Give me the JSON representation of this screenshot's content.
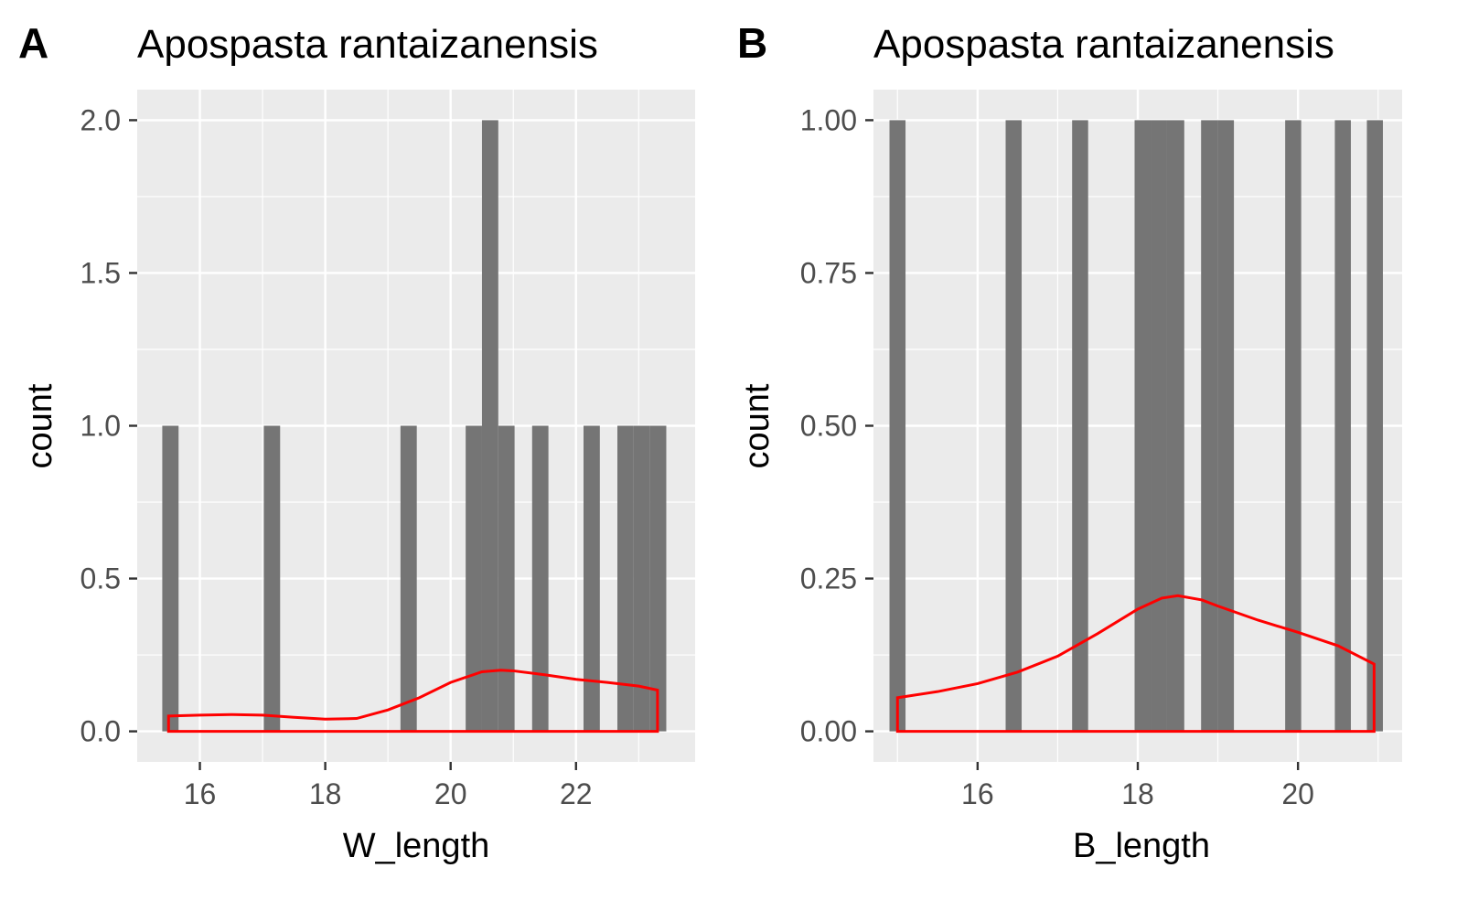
{
  "chart_data": [
    {
      "tag": "A",
      "type": "bar",
      "title": "Apospasta rantaizanensis",
      "xlabel": "W_length",
      "ylabel": "count",
      "xlim": [
        15.0,
        23.9
      ],
      "ylim": [
        -0.1,
        2.1
      ],
      "xticks": [
        16,
        18,
        20,
        22
      ],
      "xtick_labels": [
        "16",
        "18",
        "20",
        "22"
      ],
      "yticks": [
        0,
        0.5,
        1,
        1.5,
        2
      ],
      "ytick_labels": [
        "0.0",
        "0.5",
        "1.0",
        "1.5",
        "2.0"
      ],
      "bar_color": "#757575",
      "density_color": "#ff0000",
      "grid": true,
      "bars": [
        {
          "x0": 15.4,
          "x1": 15.66,
          "count": 1
        },
        {
          "x0": 17.02,
          "x1": 17.28,
          "count": 1
        },
        {
          "x0": 19.2,
          "x1": 19.46,
          "count": 1
        },
        {
          "x0": 20.24,
          "x1": 20.5,
          "count": 1
        },
        {
          "x0": 20.5,
          "x1": 20.76,
          "count": 2
        },
        {
          "x0": 20.76,
          "x1": 21.02,
          "count": 1
        },
        {
          "x0": 21.3,
          "x1": 21.56,
          "count": 1
        },
        {
          "x0": 22.12,
          "x1": 22.38,
          "count": 1
        },
        {
          "x0": 22.66,
          "x1": 22.92,
          "count": 1
        },
        {
          "x0": 22.92,
          "x1": 23.18,
          "count": 1
        },
        {
          "x0": 23.18,
          "x1": 23.44,
          "count": 1
        }
      ],
      "density": {
        "x": [
          15.5,
          16.0,
          16.5,
          17.0,
          17.5,
          18.0,
          18.5,
          19.0,
          19.5,
          20.0,
          20.5,
          20.8,
          21.0,
          21.5,
          22.0,
          22.5,
          23.0,
          23.3
        ],
        "y": [
          0.05,
          0.053,
          0.055,
          0.053,
          0.046,
          0.04,
          0.042,
          0.07,
          0.11,
          0.16,
          0.195,
          0.2,
          0.198,
          0.185,
          0.17,
          0.16,
          0.148,
          0.135
        ]
      }
    },
    {
      "tag": "B",
      "type": "bar",
      "title": "Apospasta rantaizanensis",
      "xlabel": "B_length",
      "ylabel": "count",
      "xlim": [
        14.7,
        21.3
      ],
      "ylim": [
        -0.05,
        1.05
      ],
      "xticks": [
        16,
        18,
        20
      ],
      "xtick_labels": [
        "16",
        "18",
        "20"
      ],
      "yticks": [
        0,
        0.25,
        0.5,
        0.75,
        1
      ],
      "ytick_labels": [
        "0.00",
        "0.25",
        "0.50",
        "0.75",
        "1.00"
      ],
      "bar_color": "#757575",
      "density_color": "#ff0000",
      "grid": true,
      "bars": [
        {
          "x0": 14.9,
          "x1": 15.1,
          "count": 1
        },
        {
          "x0": 16.35,
          "x1": 16.55,
          "count": 1
        },
        {
          "x0": 17.18,
          "x1": 17.38,
          "count": 1
        },
        {
          "x0": 17.96,
          "x1": 18.16,
          "count": 1
        },
        {
          "x0": 18.16,
          "x1": 18.36,
          "count": 1
        },
        {
          "x0": 18.36,
          "x1": 18.58,
          "count": 1
        },
        {
          "x0": 18.79,
          "x1": 19.0,
          "count": 1
        },
        {
          "x0": 19.0,
          "x1": 19.2,
          "count": 1
        },
        {
          "x0": 19.84,
          "x1": 20.04,
          "count": 1
        },
        {
          "x0": 20.46,
          "x1": 20.66,
          "count": 1
        },
        {
          "x0": 20.86,
          "x1": 21.06,
          "count": 1
        }
      ],
      "density": {
        "x": [
          15.0,
          15.5,
          16.0,
          16.5,
          17.0,
          17.5,
          18.0,
          18.3,
          18.5,
          18.8,
          19.0,
          19.5,
          20.0,
          20.5,
          20.95
        ],
        "y": [
          0.055,
          0.065,
          0.078,
          0.097,
          0.123,
          0.16,
          0.2,
          0.218,
          0.222,
          0.215,
          0.205,
          0.182,
          0.162,
          0.14,
          0.11
        ]
      }
    }
  ]
}
